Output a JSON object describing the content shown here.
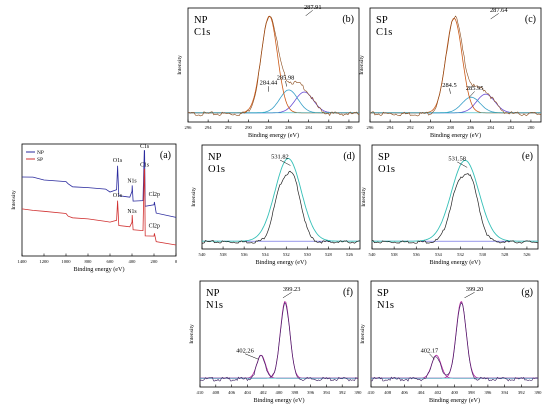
{
  "figure": {
    "background": "#ffffff"
  },
  "chart_data": [
    {
      "panel": "(a)",
      "type": "line",
      "xlabel": "Binding energy (eV)",
      "ylabel": "Intensity",
      "xlim": [
        1400,
        0
      ],
      "xticks": [
        1400,
        1200,
        1000,
        800,
        600,
        400,
        200,
        0
      ],
      "legend": {
        "position": "top-left",
        "entries": [
          {
            "name": "NP",
            "color": "#2b2b9e"
          },
          {
            "name": "SP",
            "color": "#d03030"
          }
        ]
      },
      "series": [
        {
          "name": "NP",
          "color": "#2b2b9e",
          "x": [
            1400,
            1300,
            1200,
            1000,
            980,
            940,
            800,
            640,
            600,
            540,
            531,
            520,
            420,
            400,
            398,
            390,
            300,
            288,
            285,
            280,
            200,
            196,
            180,
            0
          ],
          "y": [
            0.74,
            0.73,
            0.71,
            0.69,
            0.67,
            0.64,
            0.63,
            0.62,
            0.6,
            0.62,
            0.85,
            0.56,
            0.55,
            0.6,
            0.66,
            0.5,
            0.5,
            1.0,
            0.99,
            0.45,
            0.46,
            0.49,
            0.38,
            0.35
          ]
        },
        {
          "name": "SP",
          "color": "#d03030",
          "x": [
            1400,
            1300,
            1200,
            1000,
            980,
            940,
            800,
            640,
            600,
            540,
            531,
            520,
            420,
            400,
            398,
            390,
            300,
            288,
            285,
            280,
            200,
            196,
            180,
            0
          ],
          "y": [
            0.42,
            0.41,
            0.4,
            0.38,
            0.35,
            0.33,
            0.32,
            0.31,
            0.3,
            0.32,
            0.51,
            0.27,
            0.26,
            0.3,
            0.36,
            0.22,
            0.21,
            0.82,
            0.81,
            0.16,
            0.16,
            0.19,
            0.11,
            0.08
          ]
        }
      ],
      "annotations": [
        {
          "text": "O1s",
          "x": 531,
          "y": 0.88
        },
        {
          "text": "C1s",
          "x": 285,
          "y": 1.02
        },
        {
          "text": "N1s",
          "x": 400,
          "y": 0.68
        },
        {
          "text": "Cl2p",
          "x": 198,
          "y": 0.55
        },
        {
          "text": "O1s",
          "x": 531,
          "y": 0.54
        },
        {
          "text": "C1s",
          "x": 285,
          "y": 0.84
        },
        {
          "text": "N1s",
          "x": 400,
          "y": 0.38
        },
        {
          "text": "Cl2p",
          "x": 198,
          "y": 0.24
        }
      ]
    },
    {
      "panel": "(b)",
      "type": "line",
      "label_lines": [
        "NP",
        "C1s"
      ],
      "xlabel": "Binding energy (eV)",
      "ylabel": "Intensity",
      "xlim": [
        296,
        279
      ],
      "xticks": [
        296,
        294,
        292,
        290,
        288,
        286,
        284,
        282,
        280
      ],
      "peaks": [
        {
          "center": 284.44,
          "height": 0.2,
          "width": 0.9,
          "color": "#6a4fd6"
        },
        {
          "center": 285.98,
          "height": 0.22,
          "width": 0.9,
          "color": "#3aa0c8"
        },
        {
          "center": 287.91,
          "height": 0.93,
          "width": 0.8,
          "color": "#cc5a18"
        }
      ],
      "annotations": [
        {
          "text": "284.44",
          "x": 288.0,
          "y": 0.32,
          "peak_x": 288.0
        },
        {
          "text": "285.98",
          "x": 286.3,
          "y": 0.37,
          "peak_x": 286.2
        },
        {
          "text": "287.91",
          "x": 283.6,
          "y": 1.05,
          "peak_x": 284.3
        }
      ]
    },
    {
      "panel": "(c)",
      "type": "line",
      "label_lines": [
        "SP",
        "C1s"
      ],
      "xlabel": "Binding energy (eV)",
      "ylabel": "Intensity",
      "xlim": [
        296,
        279
      ],
      "xticks": [
        296,
        294,
        292,
        290,
        288,
        286,
        284,
        282,
        280
      ],
      "peaks": [
        {
          "center": 284.5,
          "height": 0.18,
          "width": 0.9,
          "color": "#6a4fd6"
        },
        {
          "center": 285.95,
          "height": 0.15,
          "width": 0.9,
          "color": "#3aa0c8"
        },
        {
          "center": 287.64,
          "height": 0.91,
          "width": 0.8,
          "color": "#cc5a18"
        }
      ],
      "annotations": [
        {
          "text": "284.5",
          "x": 288.1,
          "y": 0.3,
          "peak_x": 288.0
        },
        {
          "text": "285.95",
          "x": 285.6,
          "y": 0.27,
          "peak_x": 286.1
        },
        {
          "text": "287.64",
          "x": 283.2,
          "y": 1.02,
          "peak_x": 284.0
        }
      ]
    },
    {
      "panel": "(d)",
      "type": "line",
      "label_lines": [
        "NP",
        "O1s"
      ],
      "xlabel": "Binding energy (eV)",
      "ylabel": "Intensity",
      "xlim": [
        540,
        525
      ],
      "xticks": [
        540,
        538,
        536,
        534,
        532,
        530,
        528,
        526
      ],
      "fit_peak": {
        "center": 531.82,
        "height": 0.88,
        "width": 1.25,
        "color": "#36c0b8"
      },
      "data_peaks": [
        {
          "center": 531.3,
          "height": 0.62,
          "width": 0.75
        },
        {
          "center": 532.6,
          "height": 0.46,
          "width": 0.7
        }
      ],
      "annotations": [
        {
          "text": "531.82",
          "x": 532.6,
          "y": 0.92,
          "peak_x": 531.6
        }
      ]
    },
    {
      "panel": "(e)",
      "type": "line",
      "label_lines": [
        "SP",
        "O1s"
      ],
      "xlabel": "Binding energy (eV)",
      "ylabel": "Intensity",
      "xlim": [
        540,
        525
      ],
      "xticks": [
        540,
        538,
        536,
        534,
        532,
        530,
        528,
        526
      ],
      "fit_peak": {
        "center": 531.58,
        "height": 0.86,
        "width": 1.25,
        "color": "#36c0b8"
      },
      "data_peaks": [
        {
          "center": 531.1,
          "height": 0.62,
          "width": 0.75
        },
        {
          "center": 532.4,
          "height": 0.44,
          "width": 0.7
        }
      ],
      "annotations": [
        {
          "text": "531.58",
          "x": 532.3,
          "y": 0.9,
          "peak_x": 531.4
        }
      ]
    },
    {
      "panel": "(f)",
      "type": "line",
      "label_lines": [
        "NP",
        "N1s"
      ],
      "xlabel": "Binding energy (eV)",
      "ylabel": "Intensity",
      "xlim": [
        410,
        390
      ],
      "xticks": [
        410,
        408,
        406,
        404,
        402,
        400,
        398,
        396,
        394,
        392,
        390
      ],
      "peaks": [
        {
          "center": 402.26,
          "height": 0.24,
          "width": 0.55,
          "color": "#b0209a"
        },
        {
          "center": 399.23,
          "height": 0.8,
          "width": 0.6,
          "color": "#b0209a"
        }
      ],
      "annotations": [
        {
          "text": "402.26",
          "x": 404.3,
          "y": 0.32,
          "peak_x": 402.6
        },
        {
          "text": "399.23",
          "x": 398.4,
          "y": 0.96,
          "peak_x": 399.5
        }
      ]
    },
    {
      "panel": "(g)",
      "type": "line",
      "label_lines": [
        "SP",
        "N1s"
      ],
      "xlabel": "Binding energy (eV)",
      "ylabel": "Intensity",
      "xlim": [
        410,
        390
      ],
      "xticks": [
        410,
        408,
        406,
        404,
        402,
        400,
        398,
        396,
        394,
        392,
        390
      ],
      "peaks": [
        {
          "center": 402.17,
          "height": 0.24,
          "width": 0.55,
          "color": "#b0209a"
        },
        {
          "center": 399.2,
          "height": 0.8,
          "width": 0.6,
          "color": "#b0209a"
        }
      ],
      "annotations": [
        {
          "text": "402.17",
          "x": 403.0,
          "y": 0.32,
          "peak_x": 402.4
        },
        {
          "text": "399.20",
          "x": 397.6,
          "y": 0.96,
          "peak_x": 398.8
        }
      ]
    }
  ]
}
